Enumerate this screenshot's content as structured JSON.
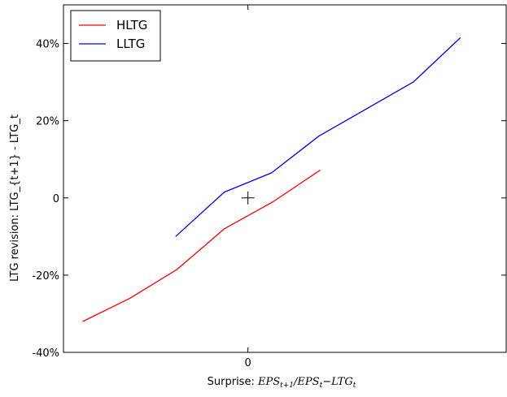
{
  "chart_data": {
    "type": "line",
    "title": "",
    "xlabel": "Surprise: EPS_{t+1}/EPS_t - LTG_t",
    "xlabel_parts": {
      "prefix": "Surprise: ",
      "eps1": "EPS",
      "eps1_sub": "t+1",
      "slash": "/",
      "eps2": "EPS",
      "eps2_sub": "t",
      "minus": "−",
      "ltg": "LTG",
      "ltg_sub": "t"
    },
    "ylabel": "LTG revision: LTG_{t+1} - LTG_t",
    "xlim": [
      -1.25,
      1.75
    ],
    "ylim": [
      -0.4,
      0.5
    ],
    "x_ticks": [
      {
        "value": 0,
        "label": "0"
      }
    ],
    "y_ticks": [
      {
        "value": -0.4,
        "label": "-40%"
      },
      {
        "value": -0.2,
        "label": "-20%"
      },
      {
        "value": 0,
        "label": "0"
      },
      {
        "value": 0.2,
        "label": "20%"
      },
      {
        "value": 0.4,
        "label": "40%"
      }
    ],
    "legend_position": "top-left",
    "grid": false,
    "series": [
      {
        "name": "HLTG",
        "color": "#ff0000",
        "x": [
          -1.12,
          -0.8,
          -0.48,
          -0.16,
          0.17,
          0.49
        ],
        "y": [
          -0.32,
          -0.26,
          -0.185,
          -0.08,
          -0.01,
          0.072
        ]
      },
      {
        "name": "LLTG",
        "color": "#0000ff",
        "x": [
          -0.49,
          -0.16,
          0.16,
          0.48,
          0.8,
          1.12,
          1.44
        ],
        "y": [
          -0.1,
          0.015,
          0.065,
          0.16,
          0.23,
          0.3,
          0.415
        ]
      }
    ],
    "marker": {
      "x": 0,
      "y": 0,
      "symbol": "+"
    }
  }
}
